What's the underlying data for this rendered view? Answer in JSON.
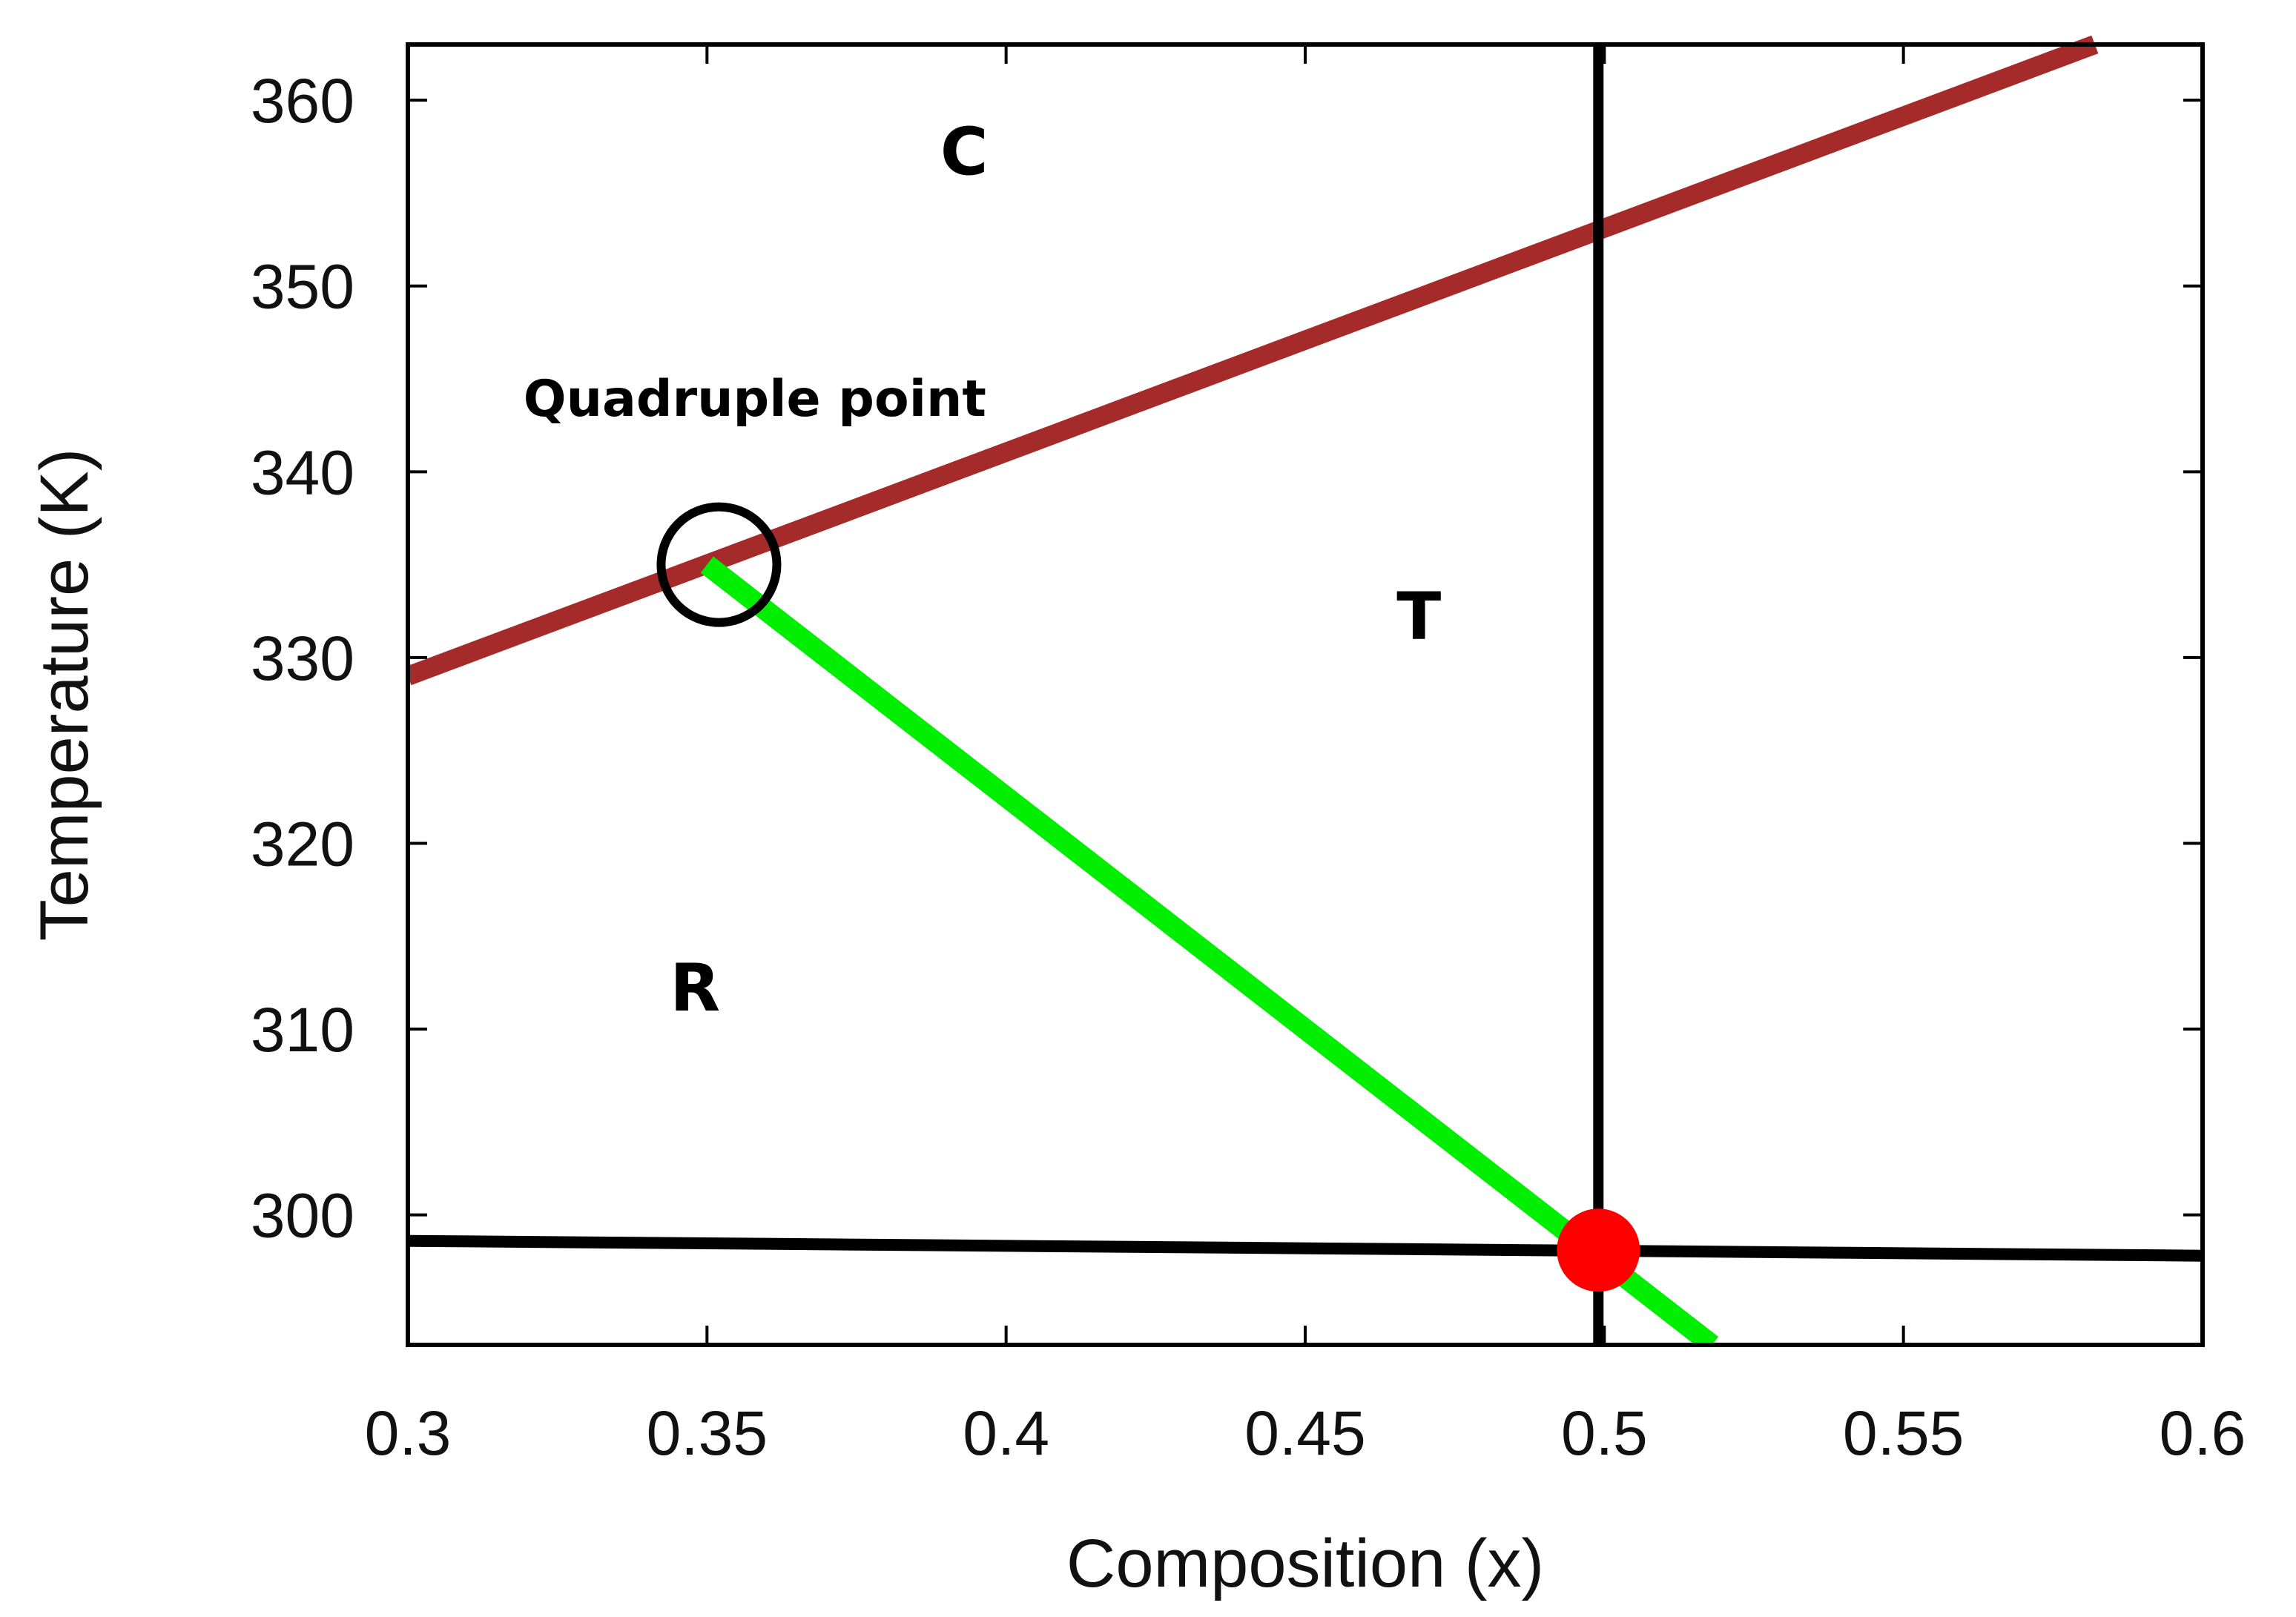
{
  "chart_data": {
    "type": "line",
    "title": "",
    "xlabel": "Composition (x)",
    "ylabel": "Temperature (K)",
    "xlim": [
      0.3,
      0.6
    ],
    "ylim": [
      293,
      363
    ],
    "xticks": [
      0.3,
      0.35,
      0.4,
      0.45,
      0.5,
      0.55,
      0.6
    ],
    "xtick_labels": [
      "0.3",
      "0.35",
      "0.4",
      "0.45",
      "0.5",
      "0.55",
      "0.6"
    ],
    "yticks": [
      300,
      310,
      320,
      330,
      340,
      350,
      360
    ],
    "ytick_labels": [
      "300",
      "310",
      "320",
      "330",
      "340",
      "350",
      "360"
    ],
    "grid": false,
    "series": [
      {
        "color": "#a52a2a",
        "x": [
          0.3,
          0.582
        ],
        "y": [
          329.0,
          363.0
        ]
      },
      {
        "color": "#00ee00",
        "x": [
          0.35,
          0.518
        ],
        "y": [
          335.0,
          293.0
        ]
      },
      {
        "color": "#000000",
        "x": [
          0.3,
          0.6
        ],
        "y": [
          298.6,
          297.8
        ]
      },
      {
        "color": "#000000",
        "x": [
          0.499,
          0.499
        ],
        "y": [
          293.0,
          363.0
        ]
      }
    ],
    "markers": [
      {
        "shape": "open-circle",
        "color": "#000000",
        "x": 0.352,
        "y": 335.0
      },
      {
        "shape": "filled-circle",
        "color": "#ff0000",
        "x": 0.499,
        "y": 298.1
      }
    ],
    "annotations": [
      {
        "text": "C",
        "x": 0.393,
        "y": 356.0,
        "kind": "region"
      },
      {
        "text": "T",
        "x": 0.469,
        "y": 331.0,
        "kind": "region"
      },
      {
        "text": "R",
        "x": 0.348,
        "y": 311.0,
        "kind": "region"
      },
      {
        "text": "Quadruple point",
        "x": 0.358,
        "y": 343.0,
        "kind": "callout"
      }
    ]
  }
}
